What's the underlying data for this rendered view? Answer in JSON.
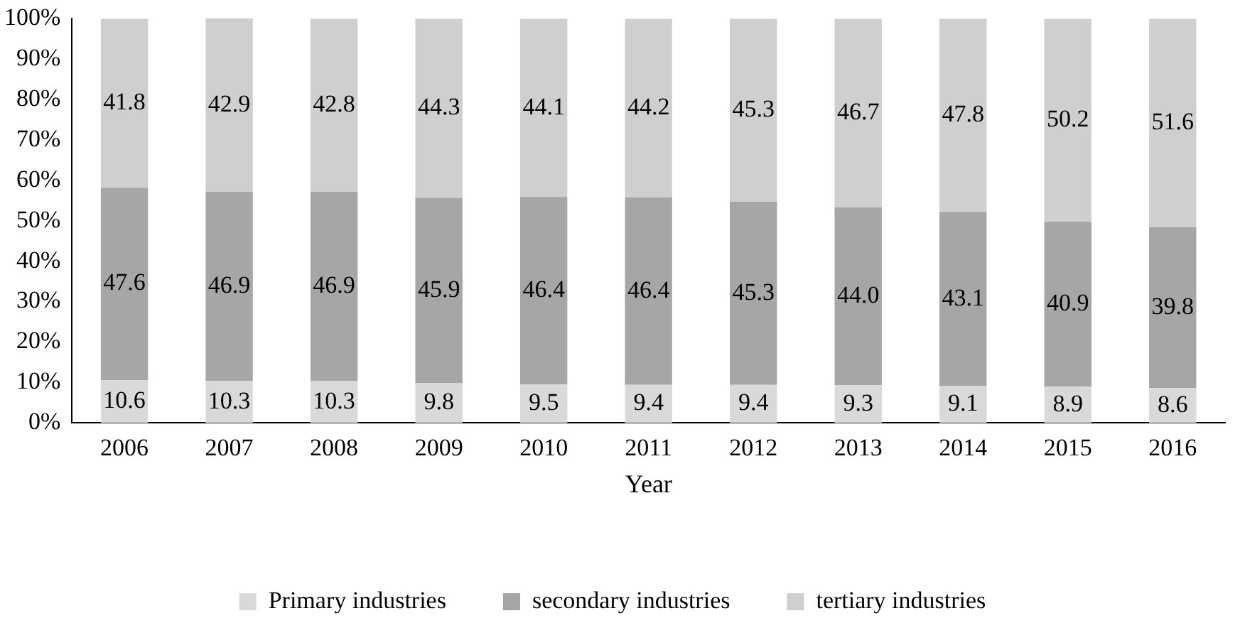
{
  "chart_data": {
    "type": "bar",
    "stacked": true,
    "xlabel": "Year",
    "categories": [
      "2006",
      "2007",
      "2008",
      "2009",
      "2010",
      "2011",
      "2012",
      "2013",
      "2014",
      "2015",
      "2016"
    ],
    "series": [
      {
        "name": "Primary industries",
        "color": "#d9d9d9",
        "values": [
          10.6,
          10.3,
          10.3,
          9.8,
          9.5,
          9.4,
          9.4,
          9.3,
          9.1,
          8.9,
          8.6
        ],
        "value_labels": [
          "10.6",
          "10.3",
          "10.3",
          "9.8",
          "9.5",
          "9.4",
          "9.4",
          "9.3",
          "9.1",
          "8.9",
          "8.6"
        ]
      },
      {
        "name": "secondary industries",
        "color": "#a6a6a6",
        "values": [
          47.6,
          46.9,
          46.9,
          45.9,
          46.4,
          46.4,
          45.3,
          44.0,
          43.1,
          40.9,
          39.8
        ],
        "value_labels": [
          "47.6",
          "46.9",
          "46.9",
          "45.9",
          "46.4",
          "46.4",
          "45.3",
          "44.0",
          "43.1",
          "40.9",
          "39.8"
        ]
      },
      {
        "name": "tertiary industries",
        "color": "#cfcfcf",
        "values": [
          41.8,
          42.9,
          42.8,
          44.3,
          44.1,
          44.2,
          45.3,
          46.7,
          47.8,
          50.2,
          51.6
        ],
        "value_labels": [
          "41.8",
          "42.9",
          "42.8",
          "44.3",
          "44.1",
          "44.2",
          "45.3",
          "46.7",
          "47.8",
          "50.2",
          "51.6"
        ]
      }
    ],
    "ylim": [
      0,
      100
    ],
    "yticks": [
      {
        "value": 0,
        "label": "0%"
      },
      {
        "value": 10,
        "label": "10%"
      },
      {
        "value": 20,
        "label": "20%"
      },
      {
        "value": 30,
        "label": "30%"
      },
      {
        "value": 40,
        "label": "40%"
      },
      {
        "value": 50,
        "label": "50%"
      },
      {
        "value": 60,
        "label": "60%"
      },
      {
        "value": 70,
        "label": "70%"
      },
      {
        "value": 80,
        "label": "80%"
      },
      {
        "value": 90,
        "label": "90%"
      },
      {
        "value": 100,
        "label": "100%"
      }
    ],
    "grid": false,
    "legend": "bottom"
  }
}
